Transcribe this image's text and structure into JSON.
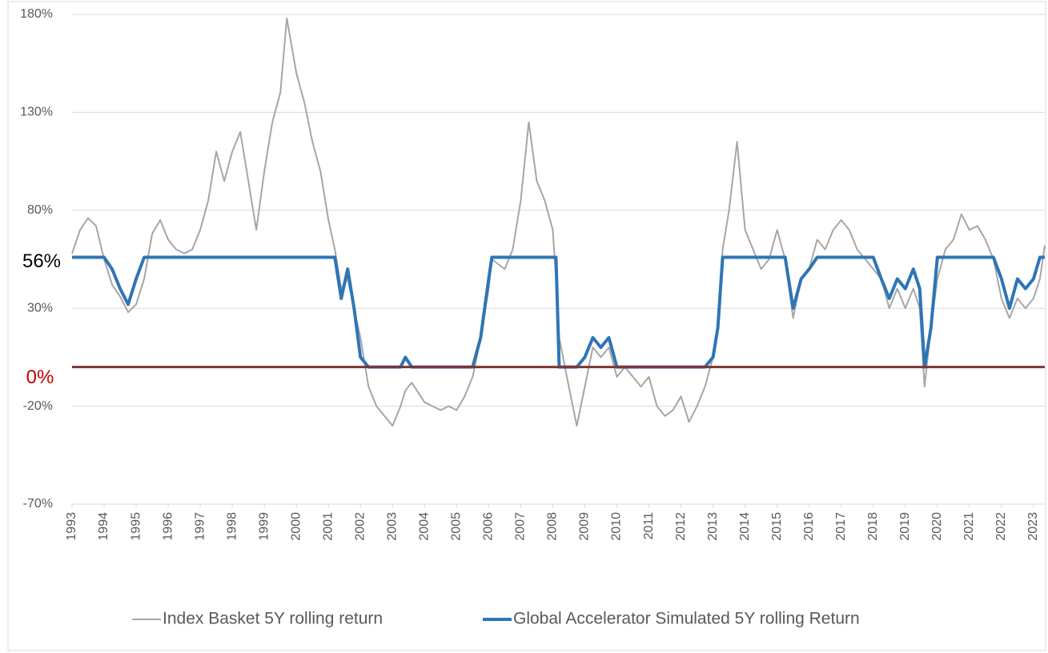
{
  "chart_data": {
    "type": "line",
    "x": [
      1993.0,
      1993.25,
      1993.5,
      1993.75,
      1994.0,
      1994.25,
      1994.5,
      1994.75,
      1995.0,
      1995.25,
      1995.5,
      1995.75,
      1996.0,
      1996.25,
      1996.5,
      1996.75,
      1997.0,
      1997.25,
      1997.5,
      1997.75,
      1998.0,
      1998.25,
      1998.5,
      1998.75,
      1999.0,
      1999.25,
      1999.5,
      1999.7,
      2000.0,
      2000.25,
      2000.5,
      2000.75,
      2001.0,
      2001.2,
      2001.4,
      2001.6,
      2001.8,
      2002.0,
      2002.25,
      2002.5,
      2002.75,
      2003.0,
      2003.25,
      2003.4,
      2003.6,
      2004.0,
      2004.25,
      2004.5,
      2004.75,
      2005.0,
      2005.25,
      2005.5,
      2005.75,
      2006.0,
      2006.1,
      2006.5,
      2006.75,
      2007.0,
      2007.25,
      2007.5,
      2007.75,
      2008.0,
      2008.1,
      2008.2,
      2008.5,
      2008.75,
      2009.0,
      2009.25,
      2009.5,
      2009.75,
      2010.0,
      2010.25,
      2010.5,
      2010.75,
      2011.0,
      2011.25,
      2011.5,
      2011.75,
      2012.0,
      2012.25,
      2012.5,
      2012.75,
      2013.0,
      2013.15,
      2013.3,
      2013.5,
      2013.75,
      2014.0,
      2014.25,
      2014.5,
      2014.75,
      2015.0,
      2015.25,
      2015.5,
      2015.75,
      2016.0,
      2016.25,
      2016.5,
      2016.75,
      2017.0,
      2017.25,
      2017.5,
      2017.75,
      2018.0,
      2018.25,
      2018.5,
      2018.75,
      2019.0,
      2019.25,
      2019.45,
      2019.6,
      2019.8,
      2020.0,
      2020.25,
      2020.5,
      2020.75,
      2021.0,
      2021.25,
      2021.5,
      2021.75,
      2022.0,
      2022.25,
      2022.5,
      2022.75,
      2023.0,
      2023.2,
      2023.35
    ],
    "series": [
      {
        "name": "Index Basket 5Y rolling return",
        "color": "#a6a6a6",
        "width": 2,
        "values": [
          58,
          70,
          76,
          72,
          55,
          42,
          36,
          28,
          32,
          45,
          68,
          75,
          65,
          60,
          58,
          60,
          70,
          85,
          110,
          95,
          110,
          120,
          95,
          70,
          100,
          125,
          140,
          178,
          150,
          135,
          115,
          100,
          75,
          60,
          40,
          45,
          30,
          15,
          -10,
          -20,
          -25,
          -30,
          -20,
          -12,
          -8,
          -18,
          -20,
          -22,
          -20,
          -22,
          -15,
          -5,
          15,
          40,
          55,
          50,
          60,
          85,
          125,
          95,
          85,
          70,
          45,
          15,
          -10,
          -30,
          -10,
          10,
          5,
          10,
          -5,
          0,
          -5,
          -10,
          -5,
          -20,
          -25,
          -22,
          -15,
          -28,
          -20,
          -10,
          5,
          20,
          60,
          80,
          115,
          70,
          60,
          50,
          55,
          70,
          55,
          25,
          45,
          50,
          65,
          60,
          70,
          75,
          70,
          60,
          55,
          50,
          45,
          30,
          40,
          30,
          40,
          30,
          -10,
          20,
          45,
          60,
          65,
          78,
          70,
          72,
          65,
          55,
          35,
          25,
          35,
          30,
          35,
          45,
          62
        ]
      },
      {
        "name": "Global Accelerator Simulated 5Y rolling Return",
        "color": "#2e75b6",
        "width": 4,
        "values": [
          56,
          56,
          56,
          56,
          56,
          50,
          40,
          32,
          45,
          56,
          56,
          56,
          56,
          56,
          56,
          56,
          56,
          56,
          56,
          56,
          56,
          56,
          56,
          56,
          56,
          56,
          56,
          56,
          56,
          56,
          56,
          56,
          56,
          56,
          35,
          50,
          30,
          5,
          0,
          0,
          0,
          0,
          0,
          5,
          0,
          0,
          0,
          0,
          0,
          0,
          0,
          0,
          15,
          45,
          56,
          56,
          56,
          56,
          56,
          56,
          56,
          56,
          56,
          0,
          0,
          0,
          5,
          15,
          10,
          15,
          0,
          0,
          0,
          0,
          0,
          0,
          0,
          0,
          0,
          0,
          0,
          0,
          5,
          20,
          56,
          56,
          56,
          56,
          56,
          56,
          56,
          56,
          56,
          30,
          45,
          50,
          56,
          56,
          56,
          56,
          56,
          56,
          56,
          56,
          45,
          35,
          45,
          40,
          50,
          40,
          0,
          20,
          56,
          56,
          56,
          56,
          56,
          56,
          56,
          56,
          45,
          30,
          45,
          40,
          45,
          56,
          56
        ]
      }
    ],
    "xlim": [
      1993,
      2023.35
    ],
    "xticks": [
      1993,
      1994,
      1995,
      1996,
      1997,
      1998,
      1999,
      2000,
      2001,
      2002,
      2003,
      2004,
      2005,
      2006,
      2007,
      2008,
      2009,
      2010,
      2011,
      2012,
      2013,
      2014,
      2015,
      2016,
      2017,
      2018,
      2019,
      2020,
      2021,
      2022,
      2023
    ],
    "ylim": [
      -70,
      180
    ],
    "yticks": [
      {
        "value": -70,
        "label": "-70%"
      },
      {
        "value": -20,
        "label": "-20%"
      },
      {
        "value": 30,
        "label": "30%"
      },
      {
        "value": 80,
        "label": "80%"
      },
      {
        "value": 130,
        "label": "130%"
      },
      {
        "value": 180,
        "label": "180%"
      }
    ],
    "grid": true,
    "annotations": [
      {
        "text": "56%",
        "y": 56,
        "color": "#000000"
      },
      {
        "text": "0%",
        "y": 0,
        "color": "#c00000",
        "line_color": "#7b3535"
      }
    ],
    "legend": "bottom"
  }
}
